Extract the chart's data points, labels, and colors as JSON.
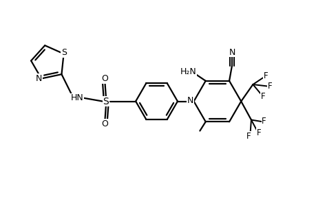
{
  "bg_color": "#ffffff",
  "line_color": "#000000",
  "line_width": 1.6,
  "font_size": 8.5,
  "fig_width": 4.6,
  "fig_height": 3.0,
  "dpi": 100,
  "xlim": [
    0,
    9.2
  ],
  "ylim": [
    0,
    6.0
  ]
}
